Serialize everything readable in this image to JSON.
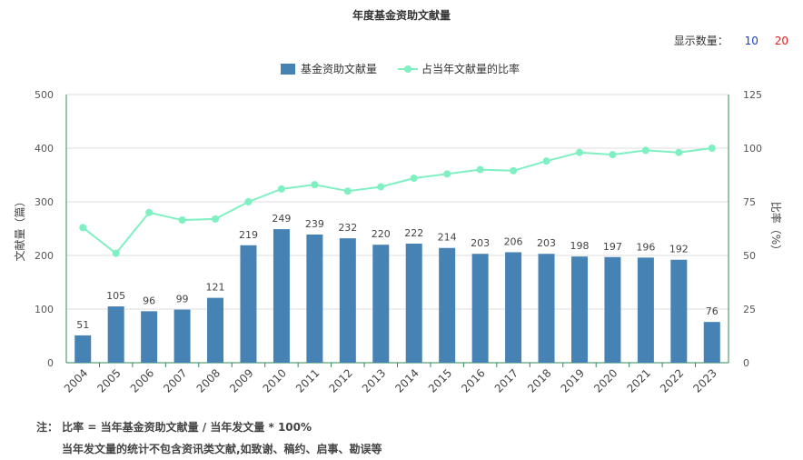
{
  "title": "年度基金资助文献量",
  "display_count": {
    "label": "显示数量：",
    "options": [
      "10",
      "20"
    ],
    "option_colors": [
      "#1a3fc4",
      "#e02020"
    ]
  },
  "notes": {
    "line1": "注： 比率 = 当年基金资助文献量 / 当年发文量 * 100%",
    "line2": "当年发文量的统计不包含资讯类文献,如致谢、稿约、启事、勘误等"
  },
  "chart_data": {
    "type": "bar",
    "categories": [
      "2004",
      "2005",
      "2006",
      "2007",
      "2008",
      "2009",
      "2010",
      "2011",
      "2012",
      "2013",
      "2014",
      "2015",
      "2016",
      "2017",
      "2018",
      "2019",
      "2020",
      "2021",
      "2022",
      "2023"
    ],
    "series": [
      {
        "name": "基金资助文献量",
        "type": "bar",
        "axis": "left",
        "color": "#4682b4",
        "values": [
          51,
          105,
          96,
          99,
          121,
          219,
          249,
          239,
          232,
          220,
          222,
          214,
          203,
          206,
          203,
          198,
          197,
          196,
          192,
          76
        ]
      },
      {
        "name": "占当年文献量的比率",
        "type": "line",
        "axis": "right",
        "color": "#7ff0c1",
        "values": [
          63,
          51,
          70,
          66.5,
          67,
          75,
          81,
          83,
          80,
          82,
          86,
          88,
          90,
          89.5,
          94,
          98,
          97,
          99,
          98,
          100
        ]
      }
    ],
    "ylabel_left": "文献量（篇）",
    "ylabel_right": "比率（%）",
    "ylim_left": [
      0,
      500
    ],
    "ylim_right": [
      0,
      125
    ],
    "yticks_left": [
      0,
      100,
      200,
      300,
      400,
      500
    ],
    "yticks_right": [
      0,
      25,
      50,
      75,
      100,
      125
    ],
    "legend_position": "top-center",
    "grid": true
  }
}
